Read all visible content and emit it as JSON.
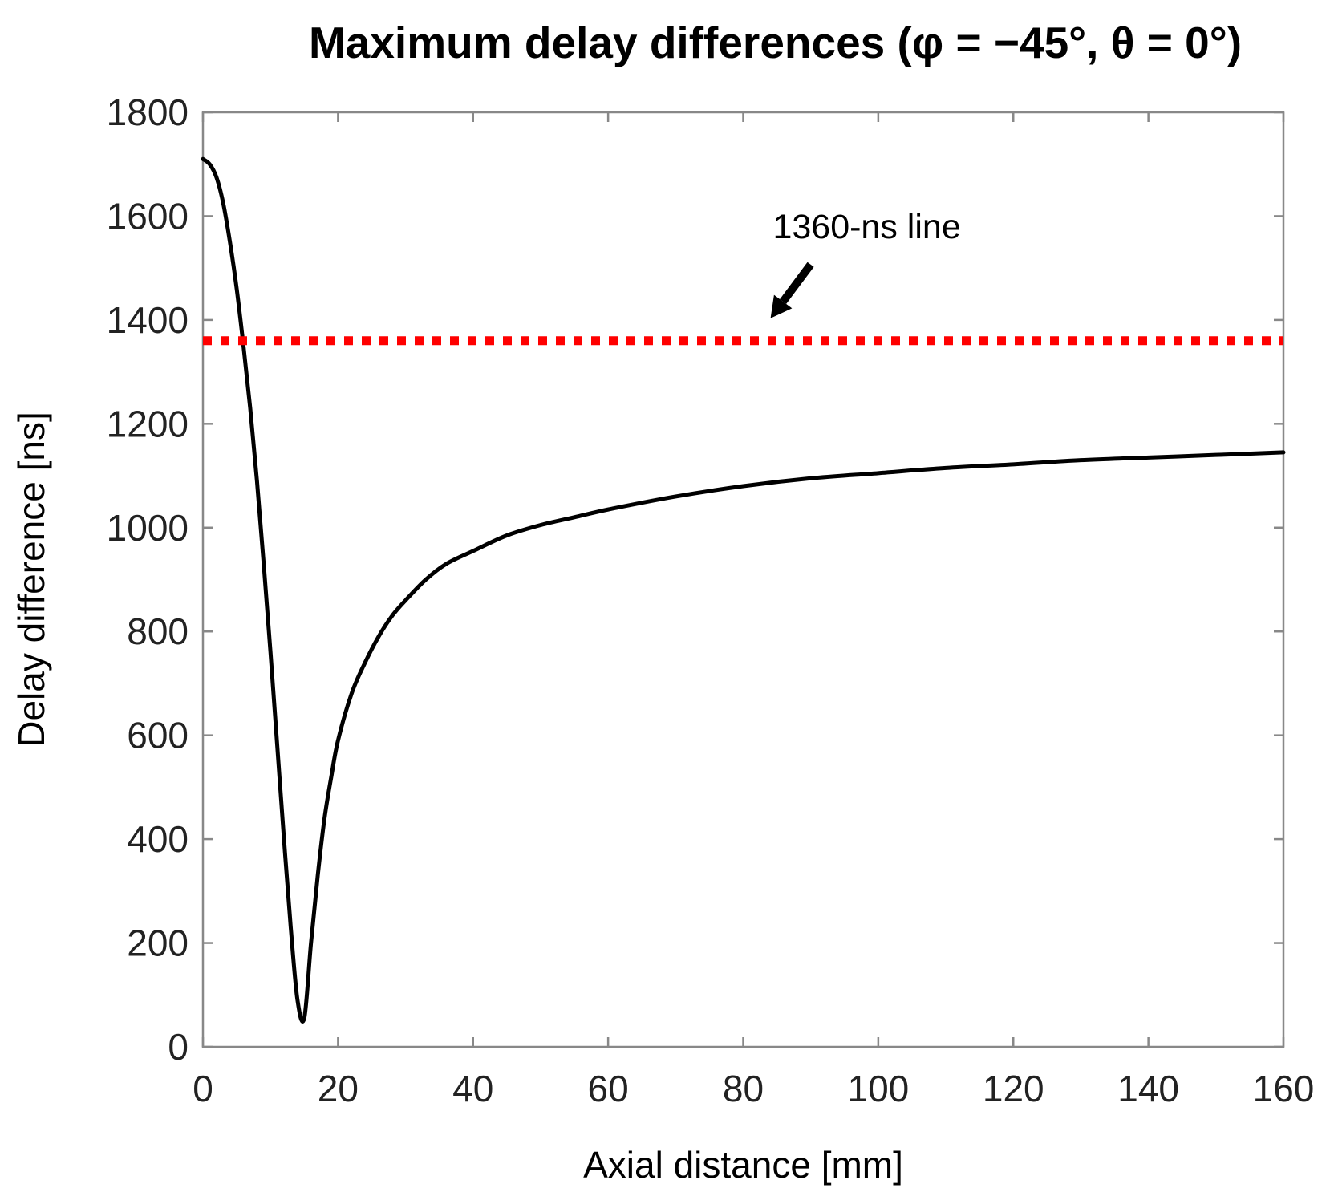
{
  "chart_data": {
    "type": "line",
    "title": "Maximum delay differences (φ = −45°, θ = 0°)",
    "xlabel": "Axial distance [mm]",
    "ylabel": "Delay difference [ns]",
    "xlim": [
      0,
      160
    ],
    "ylim": [
      0,
      1800
    ],
    "xticks": [
      0,
      20,
      40,
      60,
      80,
      100,
      120,
      140,
      160
    ],
    "yticks": [
      0,
      200,
      400,
      600,
      800,
      1000,
      1200,
      1400,
      1600,
      1800
    ],
    "grid": false,
    "series": [
      {
        "name": "Maximum delay difference",
        "color": "#000000",
        "style": "solid",
        "x": [
          0,
          1,
          2,
          3,
          4,
          5,
          6,
          7,
          8,
          9,
          10,
          11,
          12,
          13,
          14,
          15,
          16,
          17,
          18,
          19,
          20,
          22,
          24,
          26,
          28,
          30,
          33,
          36,
          40,
          45,
          50,
          55,
          60,
          70,
          80,
          90,
          100,
          110,
          120,
          130,
          140,
          150,
          160
        ],
        "y": [
          1710,
          1700,
          1675,
          1625,
          1550,
          1460,
          1350,
          1230,
          1090,
          930,
          760,
          580,
          400,
          230,
          90,
          55,
          200,
          330,
          440,
          520,
          590,
          680,
          740,
          790,
          830,
          860,
          900,
          930,
          955,
          985,
          1005,
          1020,
          1035,
          1060,
          1080,
          1095,
          1105,
          1115,
          1122,
          1130,
          1135,
          1140,
          1145
        ]
      },
      {
        "name": "1360-ns line",
        "color": "#ff0000",
        "style": "dotted",
        "x": [
          0,
          160
        ],
        "y": [
          1360,
          1360
        ]
      }
    ],
    "annotations": [
      {
        "text": "1360-ns line",
        "x": 85,
        "y": 1360
      }
    ]
  }
}
